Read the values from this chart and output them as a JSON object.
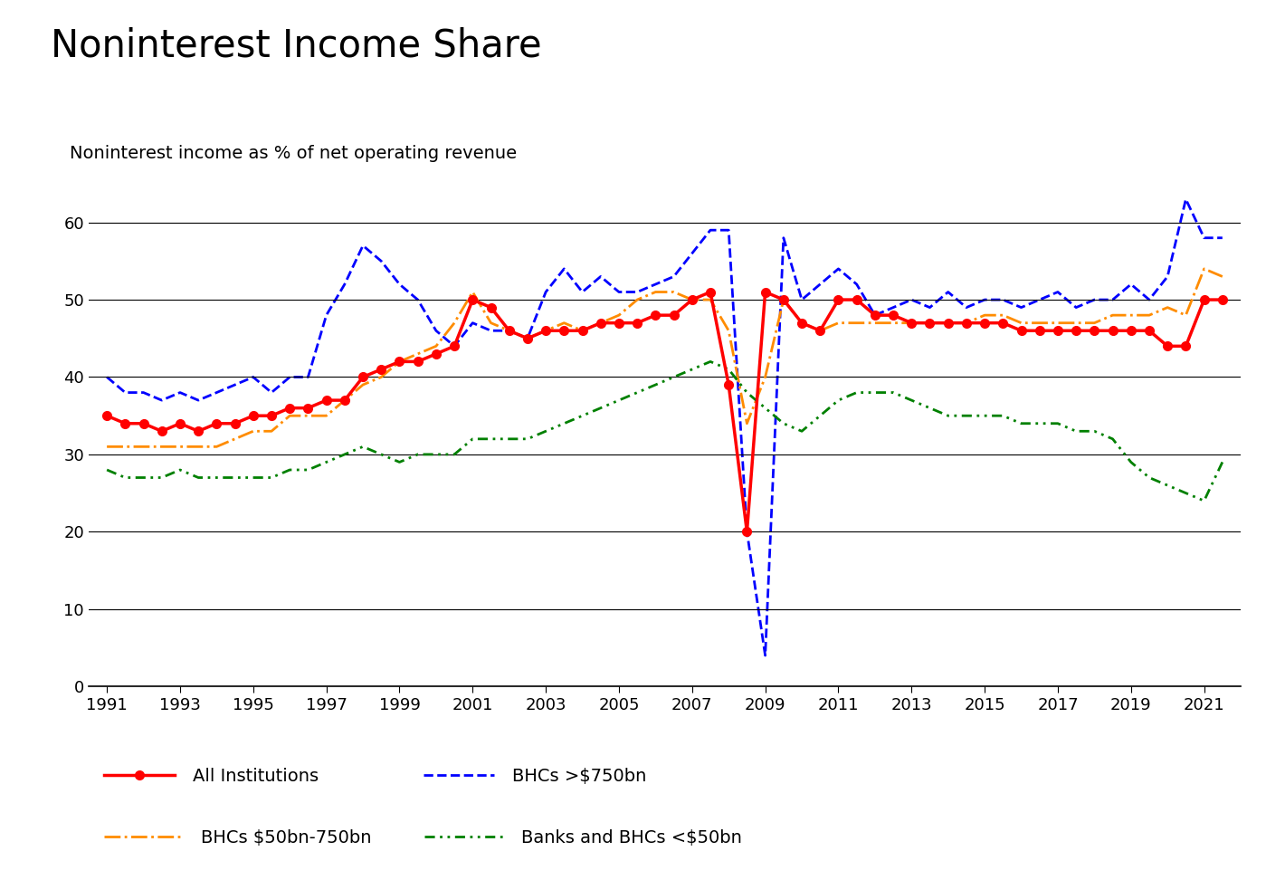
{
  "title": "Noninterest Income Share",
  "ylabel": "Noninterest income as % of net operating revenue",
  "ylim": [
    0,
    66
  ],
  "yticks": [
    0,
    10,
    20,
    30,
    40,
    50,
    60
  ],
  "background_color": "#ffffff",
  "title_fontsize": 30,
  "ylabel_fontsize": 14,
  "all_inst": {
    "x": [
      1991.0,
      1991.5,
      1992.0,
      1992.5,
      1993.0,
      1993.5,
      1994.0,
      1994.5,
      1995.0,
      1995.5,
      1996.0,
      1996.5,
      1997.0,
      1997.5,
      1998.0,
      1998.5,
      1999.0,
      1999.5,
      2000.0,
      2000.5,
      2001.0,
      2001.5,
      2002.0,
      2002.5,
      2003.0,
      2003.5,
      2004.0,
      2004.5,
      2005.0,
      2005.5,
      2006.0,
      2006.5,
      2007.0,
      2007.5,
      2008.0,
      2008.5,
      2009.0,
      2009.5,
      2010.0,
      2010.5,
      2011.0,
      2011.5,
      2012.0,
      2012.5,
      2013.0,
      2013.5,
      2014.0,
      2014.5,
      2015.0,
      2015.5,
      2016.0,
      2016.5,
      2017.0,
      2017.5,
      2018.0,
      2018.5,
      2019.0,
      2019.5,
      2020.0,
      2020.5,
      2021.0,
      2021.5
    ],
    "y": [
      35,
      34,
      34,
      33,
      34,
      33,
      34,
      34,
      35,
      35,
      36,
      36,
      37,
      37,
      40,
      41,
      42,
      42,
      43,
      44,
      50,
      49,
      46,
      45,
      46,
      46,
      46,
      47,
      47,
      47,
      48,
      48,
      50,
      51,
      39,
      20,
      51,
      50,
      47,
      46,
      50,
      50,
      48,
      48,
      47,
      47,
      47,
      47,
      47,
      47,
      46,
      46,
      46,
      46,
      46,
      46,
      46,
      46,
      44,
      44,
      50,
      50
    ],
    "color": "#ff0000",
    "linewidth": 2.5,
    "marker": "o",
    "markersize": 7
  },
  "bhc_large": {
    "x": [
      1991.0,
      1991.5,
      1992.0,
      1992.5,
      1993.0,
      1993.5,
      1994.0,
      1994.5,
      1995.0,
      1995.5,
      1996.0,
      1996.5,
      1997.0,
      1997.5,
      1998.0,
      1998.5,
      1999.0,
      1999.5,
      2000.0,
      2000.5,
      2001.0,
      2001.5,
      2002.0,
      2002.5,
      2003.0,
      2003.5,
      2004.0,
      2004.5,
      2005.0,
      2005.5,
      2006.0,
      2006.5,
      2007.0,
      2007.5,
      2008.0,
      2008.5,
      2009.0,
      2009.5,
      2010.0,
      2010.5,
      2011.0,
      2011.5,
      2012.0,
      2012.5,
      2013.0,
      2013.5,
      2014.0,
      2014.5,
      2015.0,
      2015.5,
      2016.0,
      2016.5,
      2017.0,
      2017.5,
      2018.0,
      2018.5,
      2019.0,
      2019.5,
      2020.0,
      2020.5,
      2021.0,
      2021.5
    ],
    "y": [
      40,
      38,
      38,
      37,
      38,
      37,
      38,
      39,
      40,
      38,
      40,
      40,
      48,
      52,
      57,
      55,
      52,
      50,
      46,
      44,
      47,
      46,
      46,
      45,
      51,
      54,
      51,
      53,
      51,
      51,
      52,
      53,
      56,
      59,
      59,
      20,
      4,
      58,
      50,
      52,
      54,
      52,
      48,
      49,
      50,
      49,
      51,
      49,
      50,
      50,
      49,
      50,
      51,
      49,
      50,
      50,
      52,
      50,
      53,
      63,
      58,
      58
    ],
    "color": "#0000ff",
    "linewidth": 2.0,
    "linestyle": "--"
  },
  "bhc_mid": {
    "x": [
      1991.0,
      1991.5,
      1992.0,
      1992.5,
      1993.0,
      1993.5,
      1994.0,
      1994.5,
      1995.0,
      1995.5,
      1996.0,
      1996.5,
      1997.0,
      1997.5,
      1998.0,
      1998.5,
      1999.0,
      1999.5,
      2000.0,
      2000.5,
      2001.0,
      2001.5,
      2002.0,
      2002.5,
      2003.0,
      2003.5,
      2004.0,
      2004.5,
      2005.0,
      2005.5,
      2006.0,
      2006.5,
      2007.0,
      2007.5,
      2008.0,
      2008.5,
      2009.0,
      2009.5,
      2010.0,
      2010.5,
      2011.0,
      2011.5,
      2012.0,
      2012.5,
      2013.0,
      2013.5,
      2014.0,
      2014.5,
      2015.0,
      2015.5,
      2016.0,
      2016.5,
      2017.0,
      2017.5,
      2018.0,
      2018.5,
      2019.0,
      2019.5,
      2020.0,
      2020.5,
      2021.0,
      2021.5
    ],
    "y": [
      31,
      31,
      31,
      31,
      31,
      31,
      31,
      32,
      33,
      33,
      35,
      35,
      35,
      37,
      39,
      40,
      42,
      43,
      44,
      47,
      51,
      47,
      46,
      45,
      46,
      47,
      46,
      47,
      48,
      50,
      51,
      51,
      50,
      50,
      46,
      34,
      40,
      50,
      47,
      46,
      47,
      47,
      47,
      47,
      47,
      47,
      47,
      47,
      48,
      48,
      47,
      47,
      47,
      47,
      47,
      48,
      48,
      48,
      49,
      48,
      54,
      53
    ],
    "color": "#ff8c00",
    "linewidth": 2.0,
    "linestyle": "-."
  },
  "banks_small": {
    "x": [
      1991.0,
      1991.5,
      1992.0,
      1992.5,
      1993.0,
      1993.5,
      1994.0,
      1994.5,
      1995.0,
      1995.5,
      1996.0,
      1996.5,
      1997.0,
      1997.5,
      1998.0,
      1998.5,
      1999.0,
      1999.5,
      2000.0,
      2000.5,
      2001.0,
      2001.5,
      2002.0,
      2002.5,
      2003.0,
      2003.5,
      2004.0,
      2004.5,
      2005.0,
      2005.5,
      2006.0,
      2006.5,
      2007.0,
      2007.5,
      2008.0,
      2008.5,
      2009.0,
      2009.5,
      2010.0,
      2010.5,
      2011.0,
      2011.5,
      2012.0,
      2012.5,
      2013.0,
      2013.5,
      2014.0,
      2014.5,
      2015.0,
      2015.5,
      2016.0,
      2016.5,
      2017.0,
      2017.5,
      2018.0,
      2018.5,
      2019.0,
      2019.5,
      2020.0,
      2020.5,
      2021.0,
      2021.5
    ],
    "y": [
      28,
      27,
      27,
      27,
      28,
      27,
      27,
      27,
      27,
      27,
      28,
      28,
      29,
      30,
      31,
      30,
      29,
      30,
      30,
      30,
      32,
      32,
      32,
      32,
      33,
      34,
      35,
      36,
      37,
      38,
      39,
      40,
      41,
      42,
      41,
      38,
      36,
      34,
      33,
      35,
      37,
      38,
      38,
      38,
      37,
      36,
      35,
      35,
      35,
      35,
      34,
      34,
      34,
      33,
      33,
      32,
      29,
      27,
      26,
      25,
      24,
      29
    ],
    "color": "#008000",
    "linewidth": 2.0
  },
  "legend": {
    "all_inst_label": "All Institutions",
    "bhc_large_label": "BHCs >$750bn",
    "bhc_mid_label": "BHCs $50bn-750bn",
    "banks_small_label": "Banks and BHCs <$50bn"
  },
  "xticks": [
    1991,
    1993,
    1995,
    1997,
    1999,
    2001,
    2003,
    2005,
    2007,
    2009,
    2011,
    2013,
    2015,
    2017,
    2019,
    2021
  ],
  "xlim": [
    1990.5,
    2022.0
  ]
}
